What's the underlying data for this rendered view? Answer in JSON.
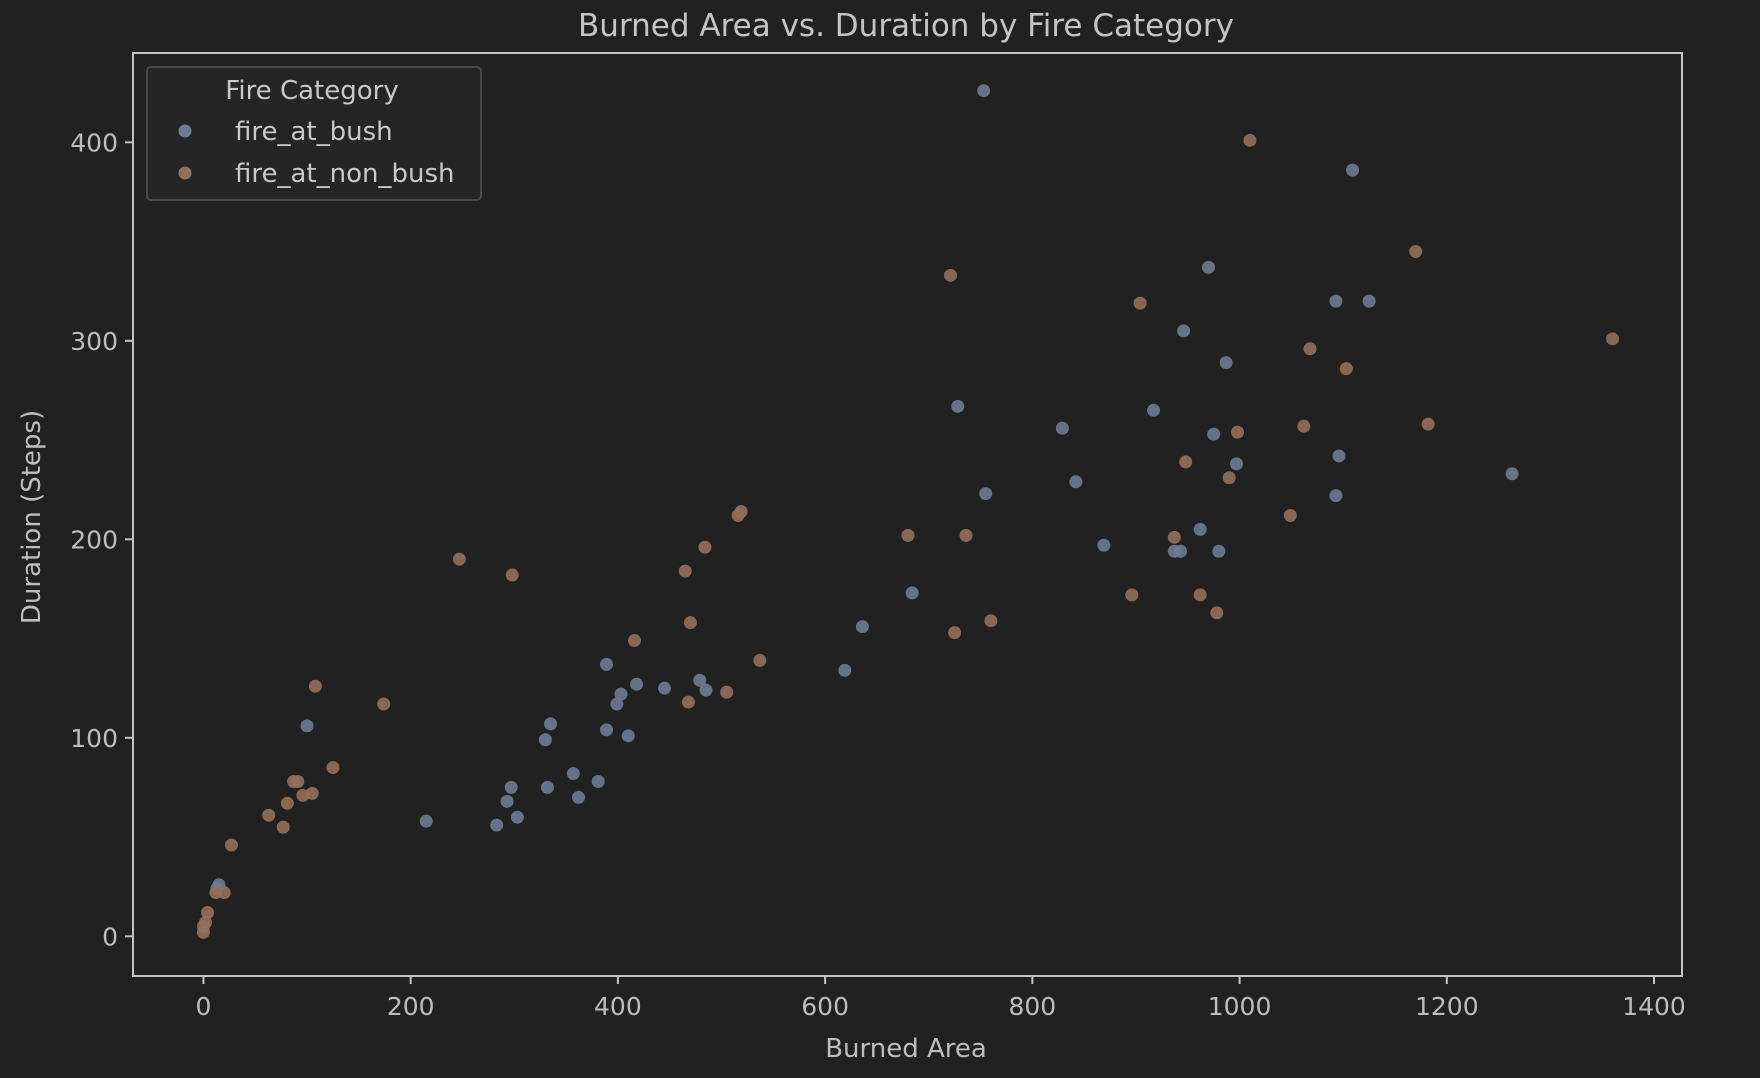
{
  "chart_data": {
    "type": "scatter",
    "title": "Burned Area vs. Duration by Fire Category",
    "xlabel": "Burned Area",
    "ylabel": "Duration (Steps)",
    "xlim": [
      -68,
      1427
    ],
    "ylim": [
      -20,
      445
    ],
    "xticks": [
      0,
      200,
      400,
      600,
      800,
      1000,
      1200,
      1400
    ],
    "yticks": [
      0,
      100,
      200,
      300,
      400
    ],
    "grid": false,
    "legend": {
      "title": "Fire Category",
      "position": "top-left"
    },
    "series": [
      {
        "name": "fire_at_bush",
        "color": "#6e7b91",
        "points": [
          [
            15,
            26
          ],
          [
            13,
            24
          ],
          [
            100,
            106
          ],
          [
            215,
            58
          ],
          [
            283,
            56
          ],
          [
            293,
            68
          ],
          [
            297,
            75
          ],
          [
            303,
            60
          ],
          [
            330,
            99
          ],
          [
            332,
            75
          ],
          [
            335,
            107
          ],
          [
            357,
            82
          ],
          [
            362,
            70
          ],
          [
            381,
            78
          ],
          [
            389,
            137
          ],
          [
            389,
            104
          ],
          [
            399,
            117
          ],
          [
            403,
            122
          ],
          [
            410,
            101
          ],
          [
            418,
            127
          ],
          [
            445,
            125
          ],
          [
            479,
            129
          ],
          [
            485,
            124
          ],
          [
            619,
            134
          ],
          [
            636,
            156
          ],
          [
            684,
            173
          ],
          [
            728,
            267
          ],
          [
            753,
            426
          ],
          [
            755,
            223
          ],
          [
            829,
            256
          ],
          [
            842,
            229
          ],
          [
            869,
            197
          ],
          [
            917,
            265
          ],
          [
            937,
            194
          ],
          [
            943,
            194
          ],
          [
            946,
            305
          ],
          [
            962,
            205
          ],
          [
            970,
            337
          ],
          [
            975,
            253
          ],
          [
            980,
            194
          ],
          [
            987,
            289
          ],
          [
            997,
            238
          ],
          [
            1093,
            222
          ],
          [
            1093,
            320
          ],
          [
            1096,
            242
          ],
          [
            1109,
            386
          ],
          [
            1125,
            320
          ],
          [
            1263,
            233
          ]
        ]
      },
      {
        "name": "fire_at_non_bush",
        "color": "#93705b",
        "points": [
          [
            0,
            2
          ],
          [
            0,
            5
          ],
          [
            2,
            7
          ],
          [
            4,
            12
          ],
          [
            12,
            22
          ],
          [
            20,
            22
          ],
          [
            27,
            46
          ],
          [
            63,
            61
          ],
          [
            77,
            55
          ],
          [
            81,
            67
          ],
          [
            87,
            78
          ],
          [
            91,
            78
          ],
          [
            96,
            71
          ],
          [
            105,
            72
          ],
          [
            108,
            126
          ],
          [
            125,
            85
          ],
          [
            174,
            117
          ],
          [
            247,
            190
          ],
          [
            298,
            182
          ],
          [
            416,
            149
          ],
          [
            465,
            184
          ],
          [
            468,
            118
          ],
          [
            470,
            158
          ],
          [
            484,
            196
          ],
          [
            505,
            123
          ],
          [
            516,
            212
          ],
          [
            519,
            214
          ],
          [
            537,
            139
          ],
          [
            680,
            202
          ],
          [
            721,
            333
          ],
          [
            725,
            153
          ],
          [
            736,
            202
          ],
          [
            760,
            159
          ],
          [
            896,
            172
          ],
          [
            904,
            319
          ],
          [
            937,
            201
          ],
          [
            948,
            239
          ],
          [
            962,
            172
          ],
          [
            978,
            163
          ],
          [
            990,
            231
          ],
          [
            998,
            254
          ],
          [
            1010,
            401
          ],
          [
            1049,
            212
          ],
          [
            1062,
            257
          ],
          [
            1068,
            296
          ],
          [
            1103,
            286
          ],
          [
            1170,
            345
          ],
          [
            1182,
            258
          ],
          [
            1360,
            301
          ]
        ]
      }
    ]
  }
}
